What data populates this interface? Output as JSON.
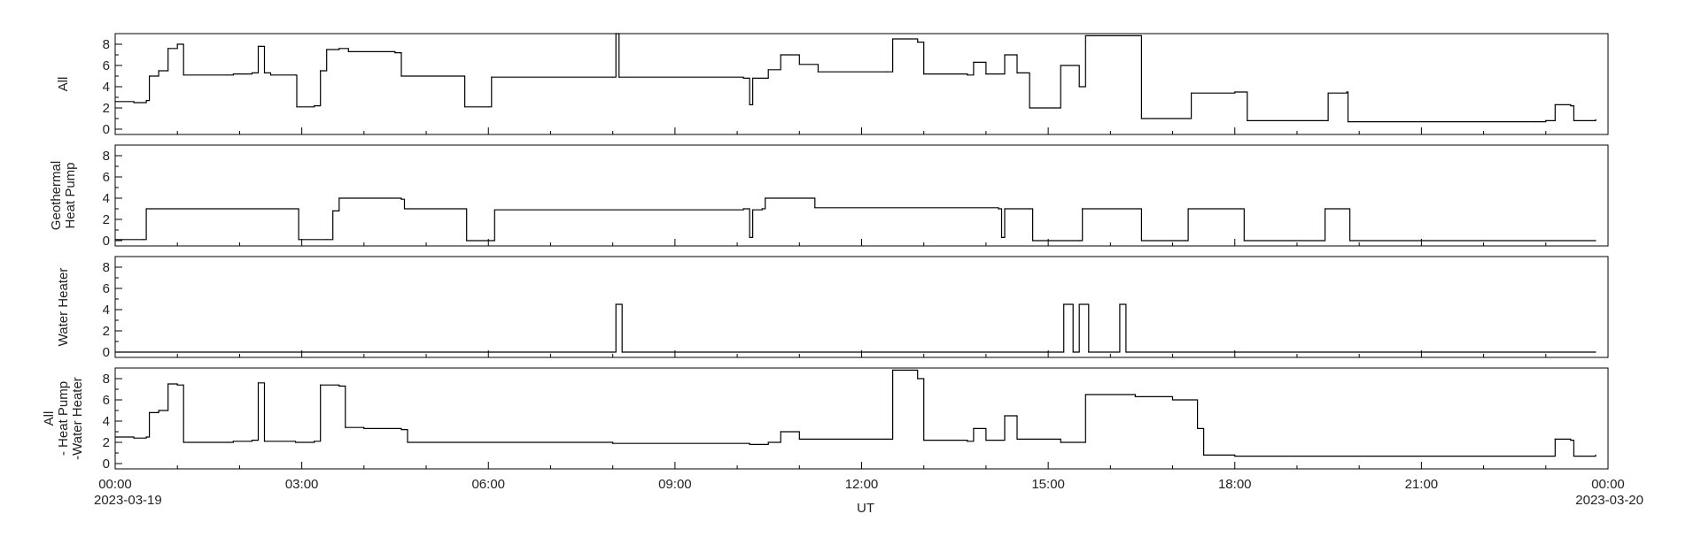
{
  "chart_data": {
    "type": "line",
    "xlabel": "UT",
    "x_ticks": [
      "00:00",
      "03:00",
      "06:00",
      "09:00",
      "12:00",
      "15:00",
      "18:00",
      "21:00",
      "00:00"
    ],
    "x_tick_dates": [
      "2023-03-19",
      "",
      "",
      "",
      "",
      "",
      "",
      "",
      "2023-03-20"
    ],
    "x_range_hours": [
      0,
      24
    ],
    "y_ticks": [
      "0",
      "2",
      "4",
      "6",
      "8"
    ],
    "ylim": [
      -0.5,
      9
    ],
    "panels": [
      {
        "ylabel": [
          "All"
        ],
        "series": [
          {
            "x": 0,
            "y": 2.6
          },
          {
            "x": 0.3,
            "y": 2.5
          },
          {
            "x": 0.5,
            "y": 2.7
          },
          {
            "x": 0.55,
            "y": 5.0
          },
          {
            "x": 0.7,
            "y": 5.5
          },
          {
            "x": 0.85,
            "y": 7.6
          },
          {
            "x": 1.0,
            "y": 8.0
          },
          {
            "x": 1.1,
            "y": 5.1
          },
          {
            "x": 1.8,
            "y": 5.1
          },
          {
            "x": 1.9,
            "y": 5.2
          },
          {
            "x": 2.2,
            "y": 5.3
          },
          {
            "x": 2.3,
            "y": 7.8
          },
          {
            "x": 2.4,
            "y": 5.3
          },
          {
            "x": 2.5,
            "y": 5.1
          },
          {
            "x": 2.9,
            "y": 5.1
          },
          {
            "x": 2.92,
            "y": 2.1
          },
          {
            "x": 3.2,
            "y": 2.2
          },
          {
            "x": 3.3,
            "y": 5.5
          },
          {
            "x": 3.4,
            "y": 7.5
          },
          {
            "x": 3.6,
            "y": 7.6
          },
          {
            "x": 3.75,
            "y": 7.3
          },
          {
            "x": 4.5,
            "y": 7.2
          },
          {
            "x": 4.6,
            "y": 5.0
          },
          {
            "x": 5.6,
            "y": 5.0
          },
          {
            "x": 5.62,
            "y": 2.1
          },
          {
            "x": 6.0,
            "y": 2.1
          },
          {
            "x": 6.05,
            "y": 4.9
          },
          {
            "x": 8.0,
            "y": 4.9
          },
          {
            "x": 8.05,
            "y": 9.0
          },
          {
            "x": 8.1,
            "y": 4.9
          },
          {
            "x": 10.1,
            "y": 4.8
          },
          {
            "x": 10.2,
            "y": 2.3
          },
          {
            "x": 10.25,
            "y": 4.8
          },
          {
            "x": 10.5,
            "y": 5.6
          },
          {
            "x": 10.7,
            "y": 7.0
          },
          {
            "x": 11.0,
            "y": 6.1
          },
          {
            "x": 11.3,
            "y": 5.4
          },
          {
            "x": 12.4,
            "y": 5.4
          },
          {
            "x": 12.5,
            "y": 8.5
          },
          {
            "x": 12.9,
            "y": 8.2
          },
          {
            "x": 13.0,
            "y": 5.2
          },
          {
            "x": 13.7,
            "y": 5.1
          },
          {
            "x": 13.8,
            "y": 6.3
          },
          {
            "x": 14.0,
            "y": 5.2
          },
          {
            "x": 14.3,
            "y": 7.0
          },
          {
            "x": 14.5,
            "y": 5.3
          },
          {
            "x": 14.7,
            "y": 2.0
          },
          {
            "x": 15.1,
            "y": 2.0
          },
          {
            "x": 15.2,
            "y": 6.0
          },
          {
            "x": 15.5,
            "y": 4.0
          },
          {
            "x": 15.6,
            "y": 8.8
          },
          {
            "x": 16.4,
            "y": 8.8
          },
          {
            "x": 16.5,
            "y": 1.0
          },
          {
            "x": 17.3,
            "y": 3.4
          },
          {
            "x": 18.0,
            "y": 3.5
          },
          {
            "x": 18.2,
            "y": 0.8
          },
          {
            "x": 19.4,
            "y": 0.8
          },
          {
            "x": 19.5,
            "y": 3.4
          },
          {
            "x": 19.8,
            "y": 3.5
          },
          {
            "x": 19.82,
            "y": 0.7
          },
          {
            "x": 22.8,
            "y": 0.7
          },
          {
            "x": 23.0,
            "y": 0.8
          },
          {
            "x": 23.15,
            "y": 2.3
          },
          {
            "x": 23.4,
            "y": 2.2
          },
          {
            "x": 23.45,
            "y": 0.8
          },
          {
            "x": 23.8,
            "y": 0.9
          }
        ]
      },
      {
        "ylabel": [
          "Geothermal",
          "Heat Pump"
        ],
        "series": [
          {
            "x": 0,
            "y": 0.1
          },
          {
            "x": 0.45,
            "y": 0.1
          },
          {
            "x": 0.5,
            "y": 3.0
          },
          {
            "x": 2.9,
            "y": 3.0
          },
          {
            "x": 2.95,
            "y": 0.1
          },
          {
            "x": 3.4,
            "y": 0.1
          },
          {
            "x": 3.5,
            "y": 2.8
          },
          {
            "x": 3.6,
            "y": 4.0
          },
          {
            "x": 4.6,
            "y": 3.9
          },
          {
            "x": 4.65,
            "y": 3.0
          },
          {
            "x": 5.6,
            "y": 3.0
          },
          {
            "x": 5.65,
            "y": 0.0
          },
          {
            "x": 6.0,
            "y": 0.0
          },
          {
            "x": 6.1,
            "y": 2.9
          },
          {
            "x": 10.1,
            "y": 3.0
          },
          {
            "x": 10.2,
            "y": 0.3
          },
          {
            "x": 10.25,
            "y": 2.9
          },
          {
            "x": 10.4,
            "y": 3.0
          },
          {
            "x": 10.45,
            "y": 4.0
          },
          {
            "x": 11.2,
            "y": 4.0
          },
          {
            "x": 11.25,
            "y": 3.1
          },
          {
            "x": 14.2,
            "y": 3.0
          },
          {
            "x": 14.25,
            "y": 0.3
          },
          {
            "x": 14.3,
            "y": 3.0
          },
          {
            "x": 14.7,
            "y": 3.0
          },
          {
            "x": 14.75,
            "y": 0.0
          },
          {
            "x": 15.5,
            "y": 0.0
          },
          {
            "x": 15.55,
            "y": 3.0
          },
          {
            "x": 16.45,
            "y": 3.0
          },
          {
            "x": 16.5,
            "y": 0.0
          },
          {
            "x": 17.2,
            "y": 0.0
          },
          {
            "x": 17.25,
            "y": 3.0
          },
          {
            "x": 18.1,
            "y": 3.0
          },
          {
            "x": 18.15,
            "y": 0.0
          },
          {
            "x": 19.4,
            "y": 0.0
          },
          {
            "x": 19.45,
            "y": 3.0
          },
          {
            "x": 19.8,
            "y": 3.0
          },
          {
            "x": 19.85,
            "y": 0.0
          },
          {
            "x": 23.8,
            "y": 0.0
          }
        ]
      },
      {
        "ylabel": [
          "Water Heater"
        ],
        "series": [
          {
            "x": 0,
            "y": 0.0
          },
          {
            "x": 8.0,
            "y": 0.0
          },
          {
            "x": 8.05,
            "y": 4.5
          },
          {
            "x": 8.1,
            "y": 4.5
          },
          {
            "x": 8.15,
            "y": 0.0
          },
          {
            "x": 15.2,
            "y": 0.0
          },
          {
            "x": 15.25,
            "y": 4.5
          },
          {
            "x": 15.35,
            "y": 4.5
          },
          {
            "x": 15.4,
            "y": 0.0
          },
          {
            "x": 15.45,
            "y": 0.0
          },
          {
            "x": 15.5,
            "y": 4.5
          },
          {
            "x": 15.6,
            "y": 4.5
          },
          {
            "x": 15.65,
            "y": 0.0
          },
          {
            "x": 16.1,
            "y": 0.0
          },
          {
            "x": 16.15,
            "y": 4.5
          },
          {
            "x": 16.2,
            "y": 4.5
          },
          {
            "x": 16.25,
            "y": 0.0
          },
          {
            "x": 23.8,
            "y": 0.0
          }
        ]
      },
      {
        "ylabel": [
          "All",
          "- Heat Pump",
          "-Water Heater"
        ],
        "series": [
          {
            "x": 0,
            "y": 2.5
          },
          {
            "x": 0.3,
            "y": 2.4
          },
          {
            "x": 0.5,
            "y": 2.5
          },
          {
            "x": 0.55,
            "y": 4.8
          },
          {
            "x": 0.7,
            "y": 5.0
          },
          {
            "x": 0.85,
            "y": 7.5
          },
          {
            "x": 1.0,
            "y": 7.4
          },
          {
            "x": 1.1,
            "y": 2.0
          },
          {
            "x": 1.8,
            "y": 2.0
          },
          {
            "x": 1.9,
            "y": 2.1
          },
          {
            "x": 2.2,
            "y": 2.2
          },
          {
            "x": 2.3,
            "y": 7.6
          },
          {
            "x": 2.4,
            "y": 2.1
          },
          {
            "x": 2.9,
            "y": 2.0
          },
          {
            "x": 3.2,
            "y": 2.1
          },
          {
            "x": 3.3,
            "y": 7.4
          },
          {
            "x": 3.6,
            "y": 7.3
          },
          {
            "x": 3.7,
            "y": 3.4
          },
          {
            "x": 4.0,
            "y": 3.3
          },
          {
            "x": 4.6,
            "y": 3.2
          },
          {
            "x": 4.7,
            "y": 2.0
          },
          {
            "x": 8.0,
            "y": 1.9
          },
          {
            "x": 10.2,
            "y": 1.8
          },
          {
            "x": 10.5,
            "y": 2.0
          },
          {
            "x": 10.7,
            "y": 3.0
          },
          {
            "x": 11.0,
            "y": 2.3
          },
          {
            "x": 12.4,
            "y": 2.3
          },
          {
            "x": 12.5,
            "y": 8.8
          },
          {
            "x": 12.9,
            "y": 8.0
          },
          {
            "x": 13.0,
            "y": 2.2
          },
          {
            "x": 13.7,
            "y": 2.1
          },
          {
            "x": 13.8,
            "y": 3.3
          },
          {
            "x": 14.0,
            "y": 2.2
          },
          {
            "x": 14.3,
            "y": 4.5
          },
          {
            "x": 14.5,
            "y": 2.3
          },
          {
            "x": 15.2,
            "y": 2.0
          },
          {
            "x": 15.6,
            "y": 6.5
          },
          {
            "x": 16.4,
            "y": 6.3
          },
          {
            "x": 17.0,
            "y": 6.0
          },
          {
            "x": 17.4,
            "y": 3.3
          },
          {
            "x": 17.5,
            "y": 0.8
          },
          {
            "x": 18.0,
            "y": 0.7
          },
          {
            "x": 19.5,
            "y": 0.7
          },
          {
            "x": 22.8,
            "y": 0.7
          },
          {
            "x": 23.15,
            "y": 2.3
          },
          {
            "x": 23.4,
            "y": 2.2
          },
          {
            "x": 23.45,
            "y": 0.7
          },
          {
            "x": 23.8,
            "y": 0.8
          }
        ]
      }
    ]
  }
}
